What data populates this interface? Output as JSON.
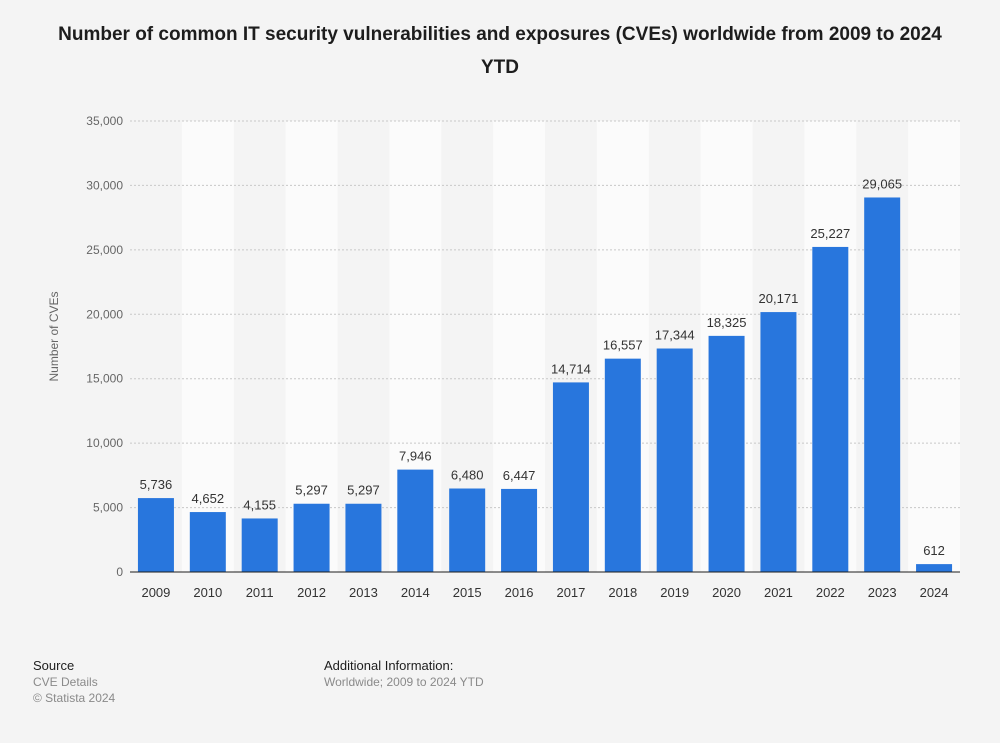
{
  "chart_data": {
    "type": "bar",
    "title": "Number of common IT security vulnerabilities and exposures (CVEs) worldwide from 2009 to 2024 YTD",
    "xlabel": "",
    "ylabel": "Number of CVEs",
    "categories": [
      "2009",
      "2010",
      "2011",
      "2012",
      "2013",
      "2014",
      "2015",
      "2016",
      "2017",
      "2018",
      "2019",
      "2020",
      "2021",
      "2022",
      "2023",
      "2024"
    ],
    "values": [
      5736,
      4652,
      4155,
      5297,
      5297,
      7946,
      6480,
      6447,
      14714,
      16557,
      17344,
      18325,
      20171,
      25227,
      29065,
      612
    ],
    "value_labels": [
      "5,736",
      "4,652",
      "4,155",
      "5,297",
      "5,297",
      "7,946",
      "6,480",
      "6,447",
      "14,714",
      "16,557",
      "17,344",
      "18,325",
      "20,171",
      "25,227",
      "29,065",
      "612"
    ],
    "ylim": [
      0,
      35000
    ],
    "yticks": [
      0,
      5000,
      10000,
      15000,
      20000,
      25000,
      30000,
      35000
    ],
    "ytick_labels": [
      "0",
      "5,000",
      "10,000",
      "15,000",
      "20,000",
      "25,000",
      "30,000",
      "35,000"
    ],
    "grid": true,
    "bar_color": "#2876dd"
  },
  "footer": {
    "source_heading": "Source",
    "source_name": "CVE Details",
    "copyright": "© Statista 2024",
    "info_heading": "Additional Information:",
    "info_text": "Worldwide; 2009 to 2024 YTD"
  }
}
